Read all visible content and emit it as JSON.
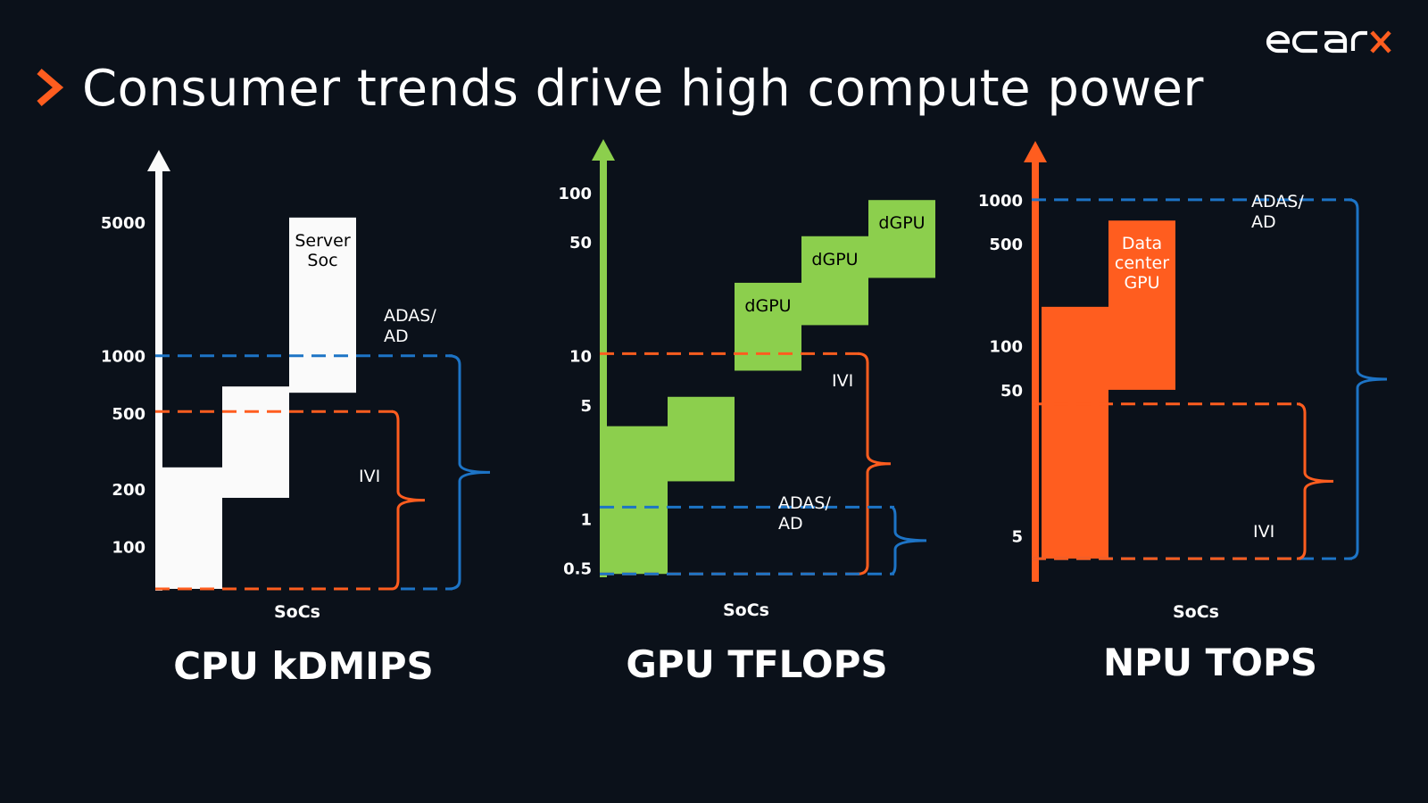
{
  "slide": {
    "title": "Consumer trends drive high compute power",
    "logo_text": "ecarx",
    "colors": {
      "background": "#0b111a",
      "accent_orange": "#ff5d1f",
      "accent_blue": "#1d74c6",
      "cpu_white": "#fafafa",
      "gpu_green": "#8ccf4d",
      "text": "#ffffff"
    },
    "icons": [
      "chevron-right-icon",
      "ecarx-logo"
    ]
  },
  "chart_data": [
    {
      "type": "bar",
      "title": "CPU kDMIPS",
      "xlabel": "SoCs",
      "ylabel": "",
      "y_scale": "log",
      "ylim": [
        60,
        7000
      ],
      "yticks": [
        100,
        200,
        500,
        1000,
        5000
      ],
      "arrow_color": "#fafafa",
      "series": [
        {
          "label": "",
          "low": 60,
          "high": 260,
          "color": "#fafafa",
          "text_color": "#000000"
        },
        {
          "label": "",
          "low": 180,
          "high": 690,
          "color": "#fafafa",
          "text_color": "#000000"
        },
        {
          "label": "Server Soc",
          "lines": [
            "Server",
            "Soc"
          ],
          "low": 640,
          "high": 5300,
          "color": "#fafafa",
          "text_color": "#000000"
        }
      ],
      "ranges": [
        {
          "label": "ADAS/AD",
          "lines": [
            "ADAS/",
            "AD"
          ],
          "low": 60,
          "high": 1000,
          "color": "#1d74c6"
        },
        {
          "label": "IVI",
          "lines": [
            "IVI"
          ],
          "low": 60,
          "high": 510,
          "color": "#ff5d1f"
        }
      ]
    },
    {
      "type": "bar",
      "title": "GPU TFLOPS",
      "xlabel": "SoCs",
      "ylabel": "",
      "y_scale": "log",
      "ylim": [
        0.45,
        130
      ],
      "yticks": [
        0.5,
        1,
        5,
        10,
        50,
        100
      ],
      "arrow_color": "#8ccf4d",
      "series": [
        {
          "label": "",
          "low": 0.46,
          "high": 3.7,
          "color": "#8ccf4d",
          "text_color": "#000000"
        },
        {
          "label": "",
          "low": 1.7,
          "high": 5.6,
          "color": "#8ccf4d",
          "text_color": "#000000"
        },
        {
          "label": "dGPU",
          "lines": [
            "dGPU"
          ],
          "low": 8.1,
          "high": 28,
          "color": "#8ccf4d",
          "text_color": "#000000"
        },
        {
          "label": "dGPU",
          "lines": [
            "dGPU"
          ],
          "low": 15.4,
          "high": 54,
          "color": "#8ccf4d",
          "text_color": "#000000"
        },
        {
          "label": "dGPU",
          "lines": [
            "dGPU"
          ],
          "low": 30,
          "high": 90,
          "color": "#8ccf4d",
          "text_color": "#000000"
        }
      ],
      "ranges": [
        {
          "label": "IVI",
          "lines": [
            "IVI"
          ],
          "low": 0.46,
          "high": 10.3,
          "color": "#ff5d1f"
        },
        {
          "label": "ADAS/AD",
          "lines": [
            "ADAS/",
            "AD"
          ],
          "low": 0.46,
          "high": 1.18,
          "color": "#1d74c6"
        }
      ]
    },
    {
      "type": "bar",
      "title": "NPU TOPS",
      "xlabel": "SoCs",
      "ylabel": "",
      "y_scale": "log",
      "ylim": [
        2.5,
        1500
      ],
      "yticks": [
        5,
        50,
        100,
        500,
        1000
      ],
      "arrow_color": "#ff5d1f",
      "series": [
        {
          "label": "",
          "low": 3.5,
          "high": 185,
          "color": "#ff5d1f",
          "text_color": "#ffffff"
        },
        {
          "label": "Data center GPU",
          "lines": [
            "Data",
            "center",
            "GPU"
          ],
          "low": 50,
          "high": 720,
          "color": "#ff5d1f",
          "text_color": "#ffffff"
        }
      ],
      "ranges": [
        {
          "label": "ADAS/AD",
          "lines": [
            "ADAS/",
            "AD"
          ],
          "low": 3.5,
          "high": 1000,
          "color": "#1d74c6"
        },
        {
          "label": "IVI",
          "lines": [
            "IVI"
          ],
          "low": 3.5,
          "high": 40,
          "color": "#ff5d1f"
        }
      ]
    }
  ]
}
